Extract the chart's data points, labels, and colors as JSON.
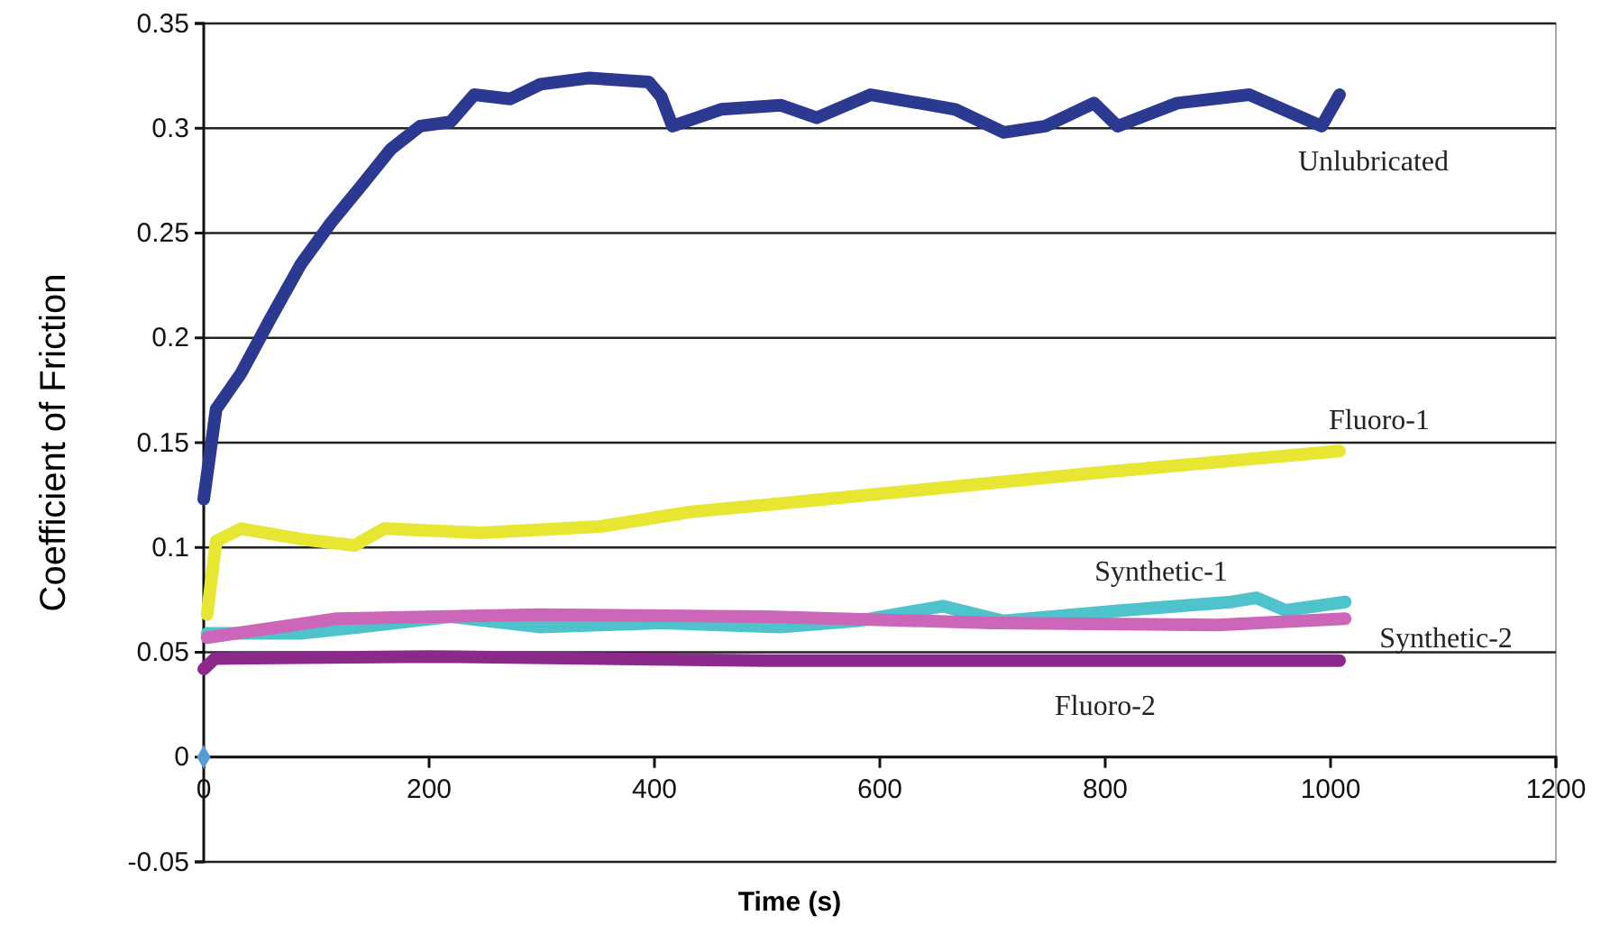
{
  "chart_data": {
    "type": "line",
    "xlabel": "Time (s)",
    "ylabel": "Coefficient of Friction",
    "xlim": [
      0,
      1200
    ],
    "xticks": [
      0,
      200,
      400,
      600,
      800,
      1000,
      1200
    ],
    "ylim": [
      -0.05,
      0.35
    ],
    "yticks": [
      -0.05,
      0,
      0.05,
      0.1,
      0.15,
      0.2,
      0.25,
      0.3,
      0.35
    ],
    "grid": "y",
    "marker": "none",
    "line_style": "solid",
    "series": [
      {
        "name": "Unlubricated",
        "color": "#2b3990",
        "x": [
          0,
          11,
          33,
          59,
          86,
          113,
          139,
          166,
          192,
          219,
          240,
          272,
          299,
          342,
          395,
          406,
          416,
          459,
          512,
          544,
          592,
          667,
          710,
          747,
          790,
          811,
          864,
          928,
          992,
          1008
        ],
        "values": [
          0.123,
          0.166,
          0.183,
          0.209,
          0.235,
          0.255,
          0.272,
          0.29,
          0.301,
          0.303,
          0.316,
          0.314,
          0.321,
          0.324,
          0.322,
          0.315,
          0.301,
          0.309,
          0.311,
          0.305,
          0.316,
          0.309,
          0.298,
          0.301,
          0.312,
          0.301,
          0.312,
          0.316,
          0.301,
          0.316
        ]
      },
      {
        "name": "Fluoro-1",
        "color": "#e6e633",
        "x": [
          3,
          11,
          33,
          86,
          134,
          160,
          246,
          352,
          432,
          512,
          608,
          800,
          1008
        ],
        "values": [
          0.068,
          0.103,
          0.109,
          0.104,
          0.101,
          0.109,
          0.107,
          0.11,
          0.117,
          0.121,
          0.126,
          0.136,
          0.146
        ]
      },
      {
        "name": "Synthetic-1",
        "color": "#4fc3cc",
        "x": [
          3,
          86,
          139,
          219,
          299,
          406,
          512,
          581,
          656,
          709,
          816,
          912,
          934,
          960,
          1013
        ],
        "values": [
          0.059,
          0.059,
          0.062,
          0.067,
          0.062,
          0.064,
          0.062,
          0.065,
          0.072,
          0.065,
          0.07,
          0.074,
          0.076,
          0.07,
          0.074
        ]
      },
      {
        "name": "Synthetic-2",
        "color": "#cc66b8",
        "x": [
          3,
          118,
          300,
          500,
          700,
          900,
          1013
        ],
        "values": [
          0.057,
          0.066,
          0.068,
          0.067,
          0.064,
          0.063,
          0.066
        ]
      },
      {
        "name": "Fluoro-2",
        "color": "#8b2a8b",
        "x": [
          0,
          10,
          200,
          500,
          800,
          1008
        ],
        "values": [
          0.042,
          0.047,
          0.048,
          0.046,
          0.046,
          0.046
        ]
      },
      {
        "type": "scatter",
        "marker": "diamond",
        "color": "#5b9bd5",
        "x": [
          0
        ],
        "values": [
          0
        ]
      }
    ]
  }
}
